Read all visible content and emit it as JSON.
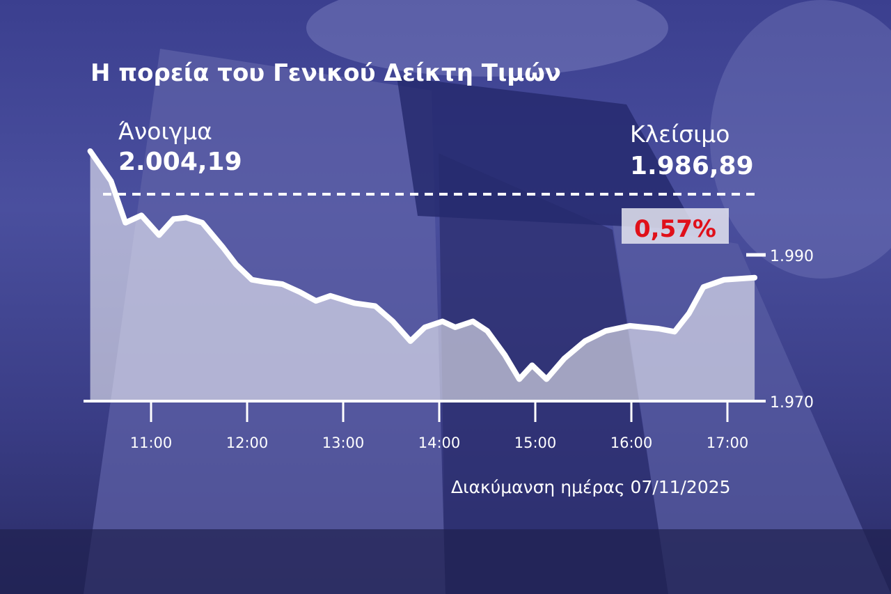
{
  "title": "Η πορεία του Γενικού Δείκτη Τιμών",
  "open": {
    "label": "Άνοιγμα",
    "value": "2.004,19"
  },
  "close": {
    "label": "Κλείσιμο",
    "value": "1.986,89"
  },
  "change": {
    "value": "0,57%",
    "color": "#e0101a"
  },
  "footer": "Διακύμανση ημέρας 07/11/2025",
  "background": "photo of exchange building with EU flag, blue tint",
  "chart_data": {
    "type": "area",
    "title": "Η πορεία του Γενικού Δείκτη Τιμών",
    "xlabel": "",
    "ylabel": "",
    "x_ticks": [
      "11:00",
      "12:00",
      "13:00",
      "14:00",
      "15:00",
      "16:00",
      "17:00"
    ],
    "y_ticks": [
      {
        "value": 1970,
        "label": "1.970"
      },
      {
        "value": 1990,
        "label": "1.990"
      }
    ],
    "ylim": [
      1970,
      2005
    ],
    "reference_line": {
      "value": 1998.3,
      "style": "dashed"
    },
    "grid": false,
    "x": [
      "10:22",
      "10:35",
      "10:44",
      "10:54",
      "11:05",
      "11:14",
      "11:22",
      "11:32",
      "11:45",
      "11:53",
      "12:03",
      "12:11",
      "12:22",
      "12:33",
      "12:43",
      "12:52",
      "13:07",
      "13:20",
      "13:31",
      "13:42",
      "13:51",
      "14:02",
      "14:10",
      "14:21",
      "14:30",
      "14:41",
      "14:50",
      "14:58",
      "15:07",
      "15:18",
      "15:31",
      "15:44",
      "15:59",
      "16:17",
      "16:27",
      "16:36",
      "16:45",
      "16:58",
      "17:17"
    ],
    "values": [
      2004.19,
      2000.1,
      1994.4,
      1995.4,
      1992.7,
      1994.9,
      1995.1,
      1994.4,
      1991.0,
      1988.7,
      1986.6,
      1986.3,
      1986.0,
      1984.9,
      1983.7,
      1984.4,
      1983.4,
      1983.0,
      1980.9,
      1978.2,
      1980.1,
      1980.9,
      1980.1,
      1980.9,
      1979.6,
      1976.3,
      1973.0,
      1974.9,
      1973.0,
      1975.8,
      1978.2,
      1979.6,
      1980.3,
      1979.9,
      1979.5,
      1982.0,
      1985.6,
      1986.6,
      1986.89
    ]
  }
}
